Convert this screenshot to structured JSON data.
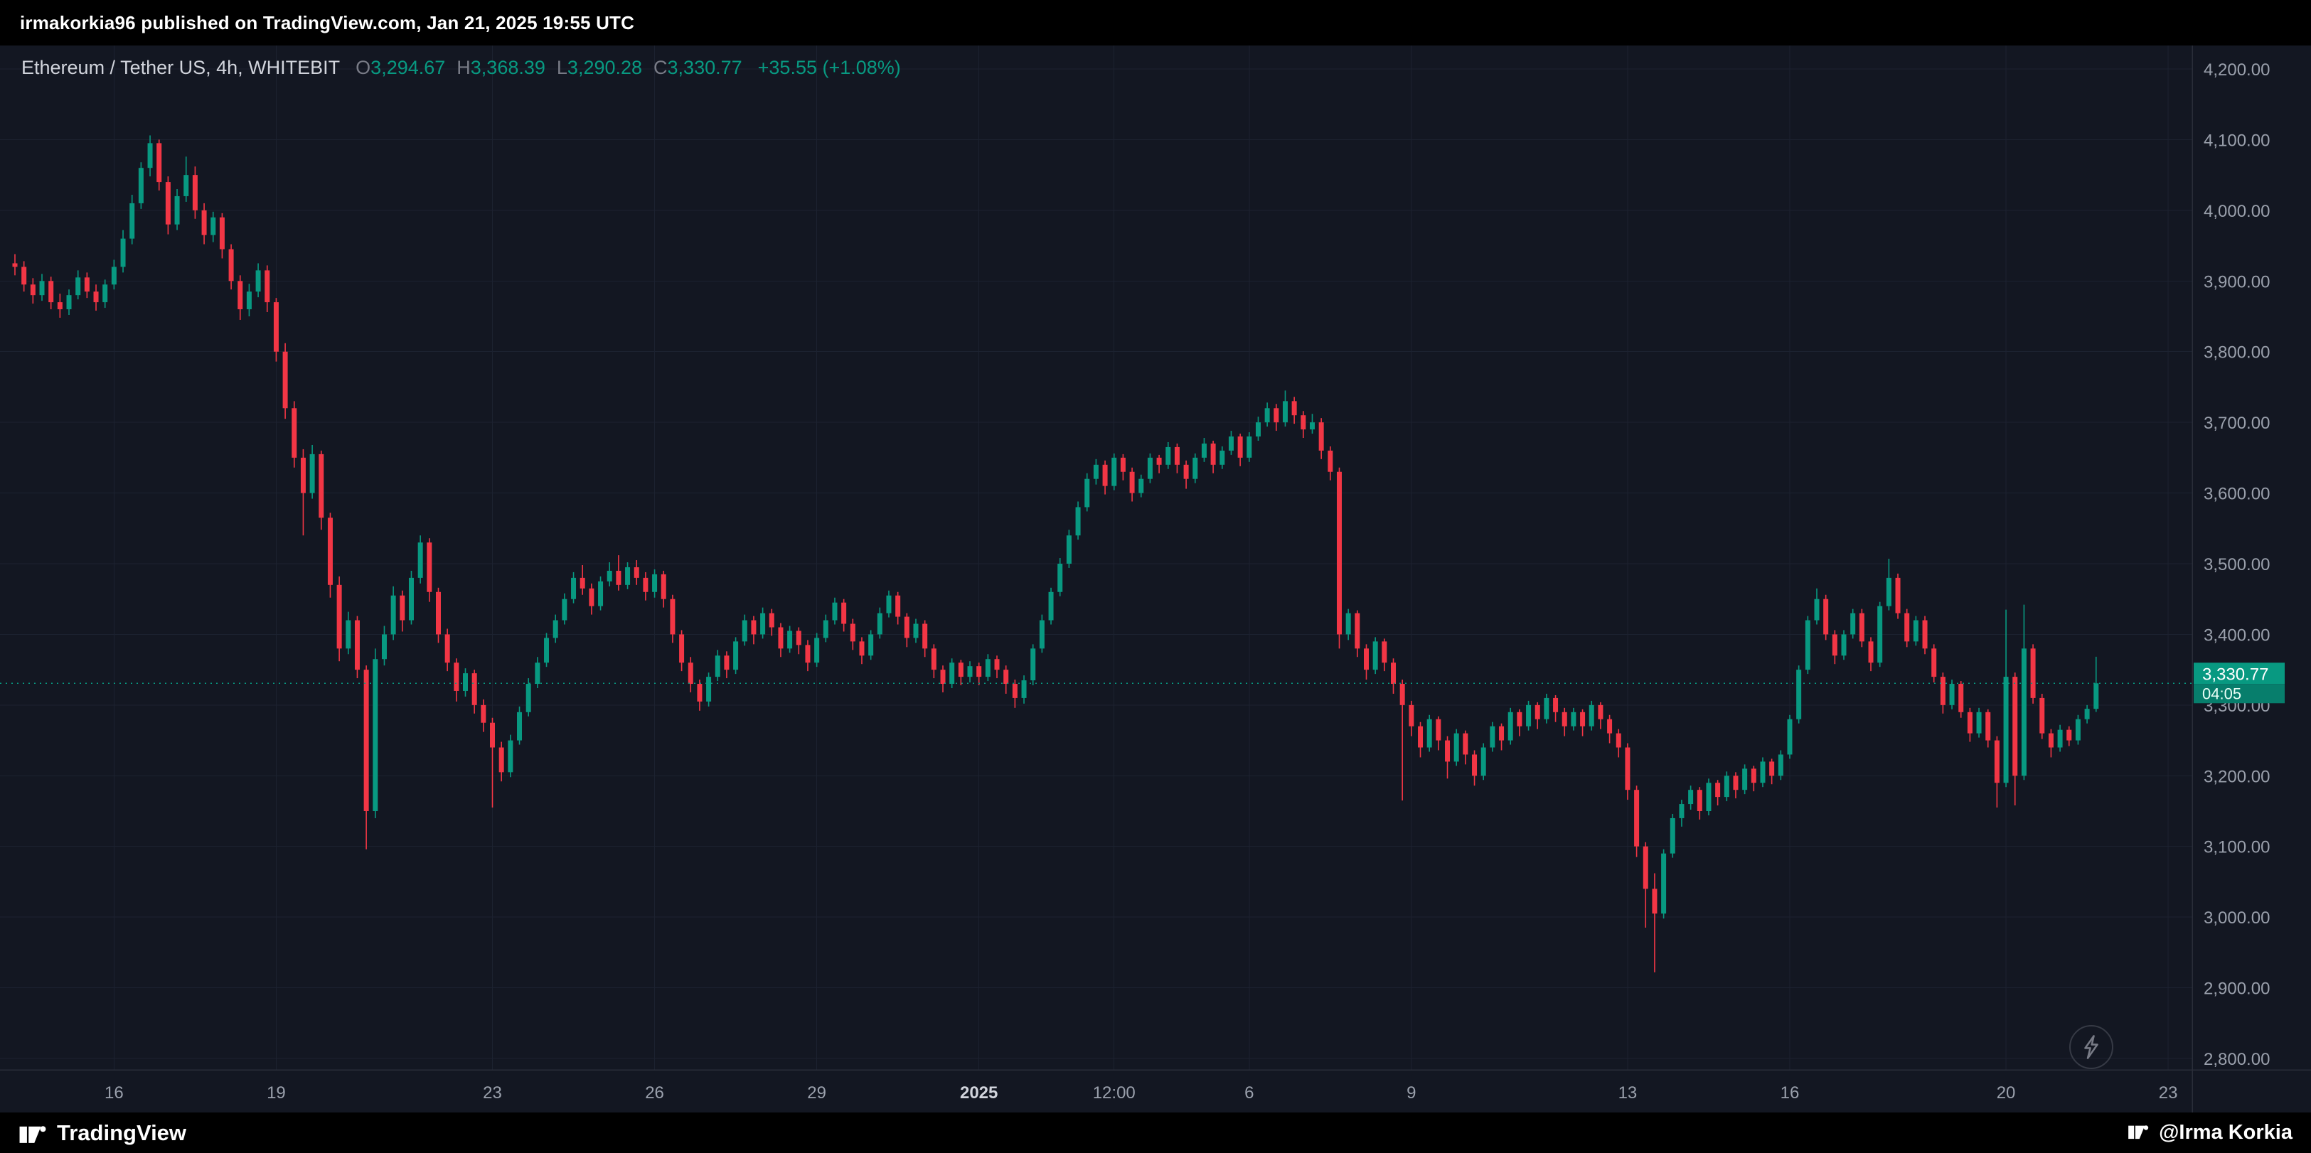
{
  "colors": {
    "bg": "#131722",
    "bar_bg": "#000000",
    "up": "#089981",
    "down": "#f23645",
    "grid": "#1c2230",
    "border": "#2a2e39",
    "axis_text": "#9aa0ac",
    "axis_text_bright": "#d1d4dc",
    "badge_top": "#089981",
    "badge_bottom": "#077e6c"
  },
  "header": {
    "publish_line": "irmakorkia96 published on TradingView.com, Jan 21, 2025 19:55 UTC"
  },
  "legend": {
    "symbol": "Ethereum / Tether US, 4h, WHITEBIT",
    "o_label": "O",
    "o_value": "3,294.67",
    "h_label": "H",
    "h_value": "3,368.39",
    "l_label": "L",
    "l_value": "3,290.28",
    "c_label": "C",
    "c_value": "3,330.77",
    "change": "+35.55 (+1.08%)"
  },
  "price_label": {
    "price": "3,330.77",
    "countdown": "04:05"
  },
  "price_axis": {
    "min": 2800,
    "max": 4200,
    "step": 100,
    "labels": [
      "4,200.00",
      "4,100.00",
      "4,000.00",
      "3,900.00",
      "3,800.00",
      "3,700.00",
      "3,600.00",
      "3,500.00",
      "3,400.00",
      "3,300.00",
      "3,200.00",
      "3,100.00",
      "3,000.00",
      "2,900.00",
      "2,800.00"
    ]
  },
  "footer": {
    "brand": "TradingView",
    "attribution": "@Irma Korkia"
  },
  "chart_data": {
    "type": "candlestick",
    "title": "Ethereum / Tether US, 4h, WHITEBIT",
    "pair": "ETH/USDT",
    "interval": "4h",
    "exchange": "WHITEBIT",
    "ylim": [
      2800,
      4200
    ],
    "grid": true,
    "last_price": 3330.77,
    "countdown": "04:05",
    "legend_ohlc": {
      "open": 3294.67,
      "high": 3368.39,
      "low": 3290.28,
      "close": 3330.77,
      "change": 35.55,
      "change_pct": 1.08
    },
    "x_ticks": [
      {
        "text": "16",
        "i": 11
      },
      {
        "text": "19",
        "i": 29
      },
      {
        "text": "23",
        "i": 53
      },
      {
        "text": "26",
        "i": 71
      },
      {
        "text": "29",
        "i": 89
      },
      {
        "text": "2025",
        "i": 107,
        "emph": true
      },
      {
        "text": "12:00",
        "i": 122
      },
      {
        "text": "6",
        "i": 137
      },
      {
        "text": "9",
        "i": 155
      },
      {
        "text": "13",
        "i": 179
      },
      {
        "text": "16",
        "i": 197
      },
      {
        "text": "20",
        "i": 221
      },
      {
        "text": "23",
        "i": 239
      }
    ],
    "ohlc": [
      [
        3925,
        3938,
        3908,
        3920
      ],
      [
        3920,
        3928,
        3885,
        3895
      ],
      [
        3895,
        3904,
        3868,
        3880
      ],
      [
        3880,
        3910,
        3872,
        3900
      ],
      [
        3900,
        3906,
        3860,
        3870
      ],
      [
        3870,
        3882,
        3848,
        3860
      ],
      [
        3860,
        3888,
        3852,
        3880
      ],
      [
        3880,
        3915,
        3874,
        3905
      ],
      [
        3905,
        3912,
        3876,
        3885
      ],
      [
        3885,
        3895,
        3858,
        3870
      ],
      [
        3870,
        3902,
        3862,
        3895
      ],
      [
        3895,
        3930,
        3888,
        3920
      ],
      [
        3920,
        3972,
        3912,
        3960
      ],
      [
        3960,
        4022,
        3952,
        4010
      ],
      [
        4010,
        4068,
        4002,
        4060
      ],
      [
        4060,
        4106,
        4048,
        4095
      ],
      [
        4095,
        4100,
        4028,
        4040
      ],
      [
        4040,
        4048,
        3966,
        3980
      ],
      [
        3980,
        4030,
        3972,
        4020
      ],
      [
        4020,
        4076,
        4012,
        4050
      ],
      [
        4050,
        4062,
        3988,
        4000
      ],
      [
        4000,
        4010,
        3952,
        3965
      ],
      [
        3965,
        3998,
        3955,
        3990
      ],
      [
        3990,
        3996,
        3932,
        3945
      ],
      [
        3945,
        3952,
        3888,
        3900
      ],
      [
        3900,
        3908,
        3845,
        3860
      ],
      [
        3860,
        3896,
        3850,
        3885
      ],
      [
        3885,
        3925,
        3877,
        3915
      ],
      [
        3915,
        3922,
        3856,
        3870
      ],
      [
        3870,
        3876,
        3786,
        3800
      ],
      [
        3800,
        3812,
        3705,
        3720
      ],
      [
        3720,
        3730,
        3636,
        3650
      ],
      [
        3650,
        3662,
        3540,
        3600
      ],
      [
        3600,
        3668,
        3592,
        3655
      ],
      [
        3655,
        3660,
        3548,
        3565
      ],
      [
        3565,
        3572,
        3452,
        3470
      ],
      [
        3470,
        3482,
        3362,
        3380
      ],
      [
        3380,
        3432,
        3372,
        3420
      ],
      [
        3420,
        3426,
        3338,
        3350
      ],
      [
        3350,
        3356,
        3096,
        3150
      ],
      [
        3150,
        3380,
        3140,
        3365
      ],
      [
        3365,
        3412,
        3356,
        3400
      ],
      [
        3400,
        3468,
        3392,
        3455
      ],
      [
        3455,
        3462,
        3404,
        3420
      ],
      [
        3420,
        3490,
        3414,
        3480
      ],
      [
        3480,
        3540,
        3472,
        3530
      ],
      [
        3530,
        3536,
        3446,
        3460
      ],
      [
        3460,
        3466,
        3388,
        3400
      ],
      [
        3400,
        3408,
        3348,
        3360
      ],
      [
        3360,
        3366,
        3305,
        3320
      ],
      [
        3320,
        3352,
        3312,
        3345
      ],
      [
        3345,
        3350,
        3288,
        3300
      ],
      [
        3300,
        3308,
        3262,
        3275
      ],
      [
        3275,
        3282,
        3155,
        3240
      ],
      [
        3240,
        3248,
        3192,
        3205
      ],
      [
        3205,
        3258,
        3198,
        3250
      ],
      [
        3250,
        3298,
        3244,
        3290
      ],
      [
        3290,
        3338,
        3284,
        3330
      ],
      [
        3330,
        3368,
        3324,
        3360
      ],
      [
        3360,
        3402,
        3354,
        3395
      ],
      [
        3395,
        3428,
        3388,
        3420
      ],
      [
        3420,
        3458,
        3414,
        3450
      ],
      [
        3450,
        3488,
        3444,
        3480
      ],
      [
        3480,
        3498,
        3456,
        3465
      ],
      [
        3465,
        3472,
        3428,
        3440
      ],
      [
        3440,
        3482,
        3434,
        3475
      ],
      [
        3475,
        3502,
        3468,
        3490
      ],
      [
        3490,
        3512,
        3462,
        3470
      ],
      [
        3470,
        3502,
        3464,
        3495
      ],
      [
        3495,
        3505,
        3470,
        3480
      ],
      [
        3480,
        3488,
        3448,
        3460
      ],
      [
        3460,
        3492,
        3452,
        3485
      ],
      [
        3485,
        3490,
        3438,
        3450
      ],
      [
        3450,
        3456,
        3388,
        3400
      ],
      [
        3400,
        3406,
        3348,
        3360
      ],
      [
        3360,
        3368,
        3318,
        3330
      ],
      [
        3330,
        3336,
        3292,
        3305
      ],
      [
        3305,
        3346,
        3298,
        3340
      ],
      [
        3340,
        3378,
        3334,
        3370
      ],
      [
        3370,
        3376,
        3338,
        3350
      ],
      [
        3350,
        3396,
        3344,
        3390
      ],
      [
        3390,
        3428,
        3384,
        3420
      ],
      [
        3420,
        3426,
        3386,
        3400
      ],
      [
        3400,
        3438,
        3394,
        3430
      ],
      [
        3430,
        3436,
        3398,
        3410
      ],
      [
        3410,
        3416,
        3368,
        3380
      ],
      [
        3380,
        3412,
        3374,
        3405
      ],
      [
        3405,
        3410,
        3372,
        3385
      ],
      [
        3385,
        3392,
        3348,
        3360
      ],
      [
        3360,
        3402,
        3354,
        3395
      ],
      [
        3395,
        3428,
        3389,
        3420
      ],
      [
        3420,
        3452,
        3414,
        3445
      ],
      [
        3445,
        3450,
        3404,
        3415
      ],
      [
        3415,
        3422,
        3378,
        3390
      ],
      [
        3390,
        3396,
        3358,
        3370
      ],
      [
        3370,
        3406,
        3364,
        3400
      ],
      [
        3400,
        3438,
        3394,
        3430
      ],
      [
        3430,
        3462,
        3424,
        3455
      ],
      [
        3455,
        3460,
        3414,
        3425
      ],
      [
        3425,
        3430,
        3382,
        3395
      ],
      [
        3395,
        3422,
        3388,
        3415
      ],
      [
        3415,
        3420,
        3368,
        3380
      ],
      [
        3380,
        3386,
        3338,
        3350
      ],
      [
        3350,
        3356,
        3318,
        3330
      ],
      [
        3330,
        3366,
        3324,
        3360
      ],
      [
        3360,
        3364,
        3328,
        3340
      ],
      [
        3340,
        3362,
        3332,
        3355
      ],
      [
        3355,
        3360,
        3328,
        3340
      ],
      [
        3340,
        3372,
        3334,
        3365
      ],
      [
        3365,
        3370,
        3338,
        3350
      ],
      [
        3350,
        3356,
        3316,
        3330
      ],
      [
        3330,
        3336,
        3296,
        3310
      ],
      [
        3310,
        3342,
        3302,
        3335
      ],
      [
        3335,
        3386,
        3328,
        3380
      ],
      [
        3380,
        3428,
        3374,
        3420
      ],
      [
        3420,
        3466,
        3414,
        3460
      ],
      [
        3460,
        3508,
        3454,
        3500
      ],
      [
        3500,
        3548,
        3494,
        3540
      ],
      [
        3540,
        3588,
        3534,
        3580
      ],
      [
        3580,
        3628,
        3574,
        3620
      ],
      [
        3620,
        3648,
        3612,
        3640
      ],
      [
        3640,
        3646,
        3598,
        3610
      ],
      [
        3610,
        3656,
        3604,
        3650
      ],
      [
        3650,
        3655,
        3618,
        3630
      ],
      [
        3630,
        3636,
        3588,
        3600
      ],
      [
        3600,
        3626,
        3594,
        3620
      ],
      [
        3620,
        3656,
        3614,
        3650
      ],
      [
        3650,
        3654,
        3628,
        3640
      ],
      [
        3640,
        3672,
        3634,
        3665
      ],
      [
        3665,
        3670,
        3628,
        3640
      ],
      [
        3640,
        3646,
        3606,
        3620
      ],
      [
        3620,
        3656,
        3614,
        3650
      ],
      [
        3650,
        3678,
        3644,
        3670
      ],
      [
        3670,
        3674,
        3628,
        3640
      ],
      [
        3640,
        3666,
        3634,
        3660
      ],
      [
        3660,
        3688,
        3654,
        3680
      ],
      [
        3680,
        3684,
        3638,
        3650
      ],
      [
        3650,
        3686,
        3644,
        3680
      ],
      [
        3680,
        3708,
        3674,
        3700
      ],
      [
        3700,
        3728,
        3694,
        3720
      ],
      [
        3720,
        3726,
        3688,
        3700
      ],
      [
        3700,
        3745,
        3694,
        3730
      ],
      [
        3730,
        3736,
        3698,
        3710
      ],
      [
        3710,
        3716,
        3678,
        3690
      ],
      [
        3690,
        3712,
        3684,
        3700
      ],
      [
        3700,
        3706,
        3648,
        3660
      ],
      [
        3660,
        3666,
        3618,
        3630
      ],
      [
        3630,
        3636,
        3380,
        3400
      ],
      [
        3400,
        3436,
        3392,
        3430
      ],
      [
        3430,
        3434,
        3368,
        3380
      ],
      [
        3380,
        3386,
        3336,
        3350
      ],
      [
        3350,
        3396,
        3344,
        3390
      ],
      [
        3390,
        3394,
        3348,
        3360
      ],
      [
        3360,
        3366,
        3316,
        3330
      ],
      [
        3330,
        3336,
        3165,
        3300
      ],
      [
        3300,
        3306,
        3256,
        3270
      ],
      [
        3270,
        3276,
        3226,
        3240
      ],
      [
        3240,
        3286,
        3234,
        3280
      ],
      [
        3280,
        3284,
        3236,
        3250
      ],
      [
        3250,
        3256,
        3196,
        3220
      ],
      [
        3220,
        3266,
        3214,
        3260
      ],
      [
        3260,
        3264,
        3216,
        3230
      ],
      [
        3230,
        3236,
        3186,
        3200
      ],
      [
        3200,
        3246,
        3194,
        3240
      ],
      [
        3240,
        3276,
        3234,
        3270
      ],
      [
        3270,
        3274,
        3236,
        3250
      ],
      [
        3250,
        3296,
        3244,
        3290
      ],
      [
        3290,
        3294,
        3256,
        3270
      ],
      [
        3270,
        3306,
        3264,
        3300
      ],
      [
        3300,
        3304,
        3266,
        3280
      ],
      [
        3280,
        3316,
        3274,
        3310
      ],
      [
        3310,
        3314,
        3276,
        3290
      ],
      [
        3290,
        3296,
        3256,
        3270
      ],
      [
        3270,
        3296,
        3264,
        3290
      ],
      [
        3290,
        3294,
        3256,
        3270
      ],
      [
        3270,
        3306,
        3264,
        3300
      ],
      [
        3300,
        3304,
        3266,
        3280
      ],
      [
        3280,
        3286,
        3246,
        3260
      ],
      [
        3260,
        3266,
        3226,
        3240
      ],
      [
        3240,
        3246,
        3166,
        3180
      ],
      [
        3180,
        3186,
        3085,
        3100
      ],
      [
        3100,
        3106,
        2985,
        3040
      ],
      [
        3040,
        3062,
        2922,
        3005
      ],
      [
        3005,
        3096,
        2998,
        3090
      ],
      [
        3090,
        3146,
        3084,
        3140
      ],
      [
        3140,
        3166,
        3128,
        3160
      ],
      [
        3160,
        3186,
        3152,
        3180
      ],
      [
        3180,
        3184,
        3138,
        3150
      ],
      [
        3150,
        3196,
        3144,
        3190
      ],
      [
        3190,
        3194,
        3158,
        3170
      ],
      [
        3170,
        3206,
        3164,
        3200
      ],
      [
        3200,
        3205,
        3168,
        3180
      ],
      [
        3180,
        3216,
        3174,
        3210
      ],
      [
        3210,
        3214,
        3178,
        3190
      ],
      [
        3190,
        3226,
        3184,
        3220
      ],
      [
        3220,
        3224,
        3188,
        3200
      ],
      [
        3200,
        3236,
        3194,
        3230
      ],
      [
        3230,
        3286,
        3224,
        3280
      ],
      [
        3280,
        3356,
        3274,
        3350
      ],
      [
        3350,
        3426,
        3344,
        3420
      ],
      [
        3420,
        3465,
        3414,
        3450
      ],
      [
        3450,
        3456,
        3392,
        3400
      ],
      [
        3400,
        3406,
        3358,
        3370
      ],
      [
        3370,
        3406,
        3364,
        3400
      ],
      [
        3400,
        3436,
        3394,
        3430
      ],
      [
        3430,
        3436,
        3382,
        3390
      ],
      [
        3390,
        3396,
        3348,
        3360
      ],
      [
        3360,
        3446,
        3354,
        3440
      ],
      [
        3440,
        3507,
        3434,
        3480
      ],
      [
        3480,
        3486,
        3422,
        3430
      ],
      [
        3430,
        3436,
        3382,
        3390
      ],
      [
        3390,
        3426,
        3384,
        3420
      ],
      [
        3420,
        3426,
        3372,
        3380
      ],
      [
        3380,
        3386,
        3332,
        3340
      ],
      [
        3340,
        3346,
        3288,
        3300
      ],
      [
        3300,
        3336,
        3294,
        3330
      ],
      [
        3330,
        3334,
        3282,
        3290
      ],
      [
        3290,
        3296,
        3248,
        3260
      ],
      [
        3260,
        3296,
        3254,
        3290
      ],
      [
        3290,
        3294,
        3240,
        3250
      ],
      [
        3250,
        3256,
        3155,
        3190
      ],
      [
        3190,
        3435,
        3184,
        3340
      ],
      [
        3340,
        3346,
        3158,
        3200
      ],
      [
        3200,
        3442,
        3194,
        3380
      ],
      [
        3380,
        3386,
        3302,
        3310
      ],
      [
        3310,
        3316,
        3252,
        3260
      ],
      [
        3260,
        3266,
        3226,
        3240
      ],
      [
        3240,
        3272,
        3234,
        3265
      ],
      [
        3265,
        3270,
        3242,
        3250
      ],
      [
        3250,
        3286,
        3244,
        3280
      ],
      [
        3280,
        3300,
        3274,
        3294.67
      ],
      [
        3294.67,
        3368.39,
        3290.28,
        3330.77
      ]
    ]
  }
}
